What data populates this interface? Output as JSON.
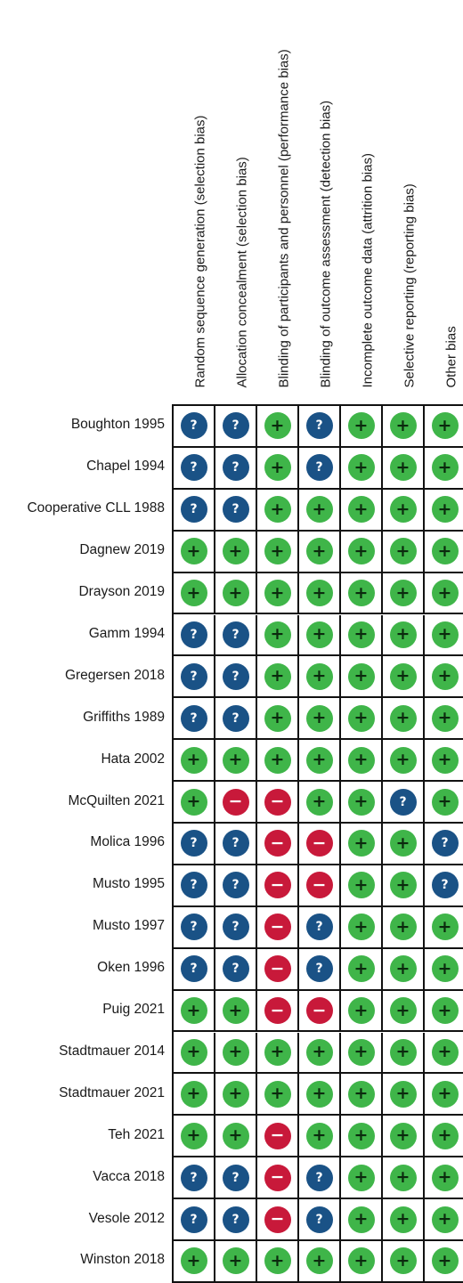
{
  "columns": [
    "Random sequence generation (selection bias)",
    "Allocation concealment (selection bias)",
    "Blinding of participants and personnel (performance bias)",
    "Blinding of outcome assessment (detection bias)",
    "Incomplete outcome data (attrition bias)",
    "Selective reporting (reporting bias)",
    "Other bias"
  ],
  "symbols": {
    "low": "+",
    "unclear": "?",
    "high": "−"
  },
  "colors": {
    "low": "#3fb549",
    "unclear": "#1a5286",
    "high": "#c8193a"
  },
  "studies": [
    {
      "name": "Boughton 1995",
      "ratings": [
        "unclear",
        "unclear",
        "low",
        "unclear",
        "low",
        "low",
        "low"
      ]
    },
    {
      "name": "Chapel 1994",
      "ratings": [
        "unclear",
        "unclear",
        "low",
        "unclear",
        "low",
        "low",
        "low"
      ]
    },
    {
      "name": "Cooperative CLL 1988",
      "ratings": [
        "unclear",
        "unclear",
        "low",
        "low",
        "low",
        "low",
        "low"
      ]
    },
    {
      "name": "Dagnew 2019",
      "ratings": [
        "low",
        "low",
        "low",
        "low",
        "low",
        "low",
        "low"
      ]
    },
    {
      "name": "Drayson 2019",
      "ratings": [
        "low",
        "low",
        "low",
        "low",
        "low",
        "low",
        "low"
      ]
    },
    {
      "name": "Gamm 1994",
      "ratings": [
        "unclear",
        "unclear",
        "low",
        "low",
        "low",
        "low",
        "low"
      ]
    },
    {
      "name": "Gregersen 2018",
      "ratings": [
        "unclear",
        "unclear",
        "low",
        "low",
        "low",
        "low",
        "low"
      ]
    },
    {
      "name": "Griffiths 1989",
      "ratings": [
        "unclear",
        "unclear",
        "low",
        "low",
        "low",
        "low",
        "low"
      ]
    },
    {
      "name": "Hata 2002",
      "ratings": [
        "low",
        "low",
        "low",
        "low",
        "low",
        "low",
        "low"
      ]
    },
    {
      "name": "McQuilten 2021",
      "ratings": [
        "low",
        "high",
        "high",
        "low",
        "low",
        "unclear",
        "low"
      ]
    },
    {
      "name": "Molica 1996",
      "ratings": [
        "unclear",
        "unclear",
        "high",
        "high",
        "low",
        "low",
        "unclear"
      ]
    },
    {
      "name": "Musto 1995",
      "ratings": [
        "unclear",
        "unclear",
        "high",
        "high",
        "low",
        "low",
        "unclear"
      ]
    },
    {
      "name": "Musto 1997",
      "ratings": [
        "unclear",
        "unclear",
        "high",
        "unclear",
        "low",
        "low",
        "low"
      ]
    },
    {
      "name": "Oken 1996",
      "ratings": [
        "unclear",
        "unclear",
        "high",
        "unclear",
        "low",
        "low",
        "low"
      ]
    },
    {
      "name": "Puig 2021",
      "ratings": [
        "low",
        "low",
        "high",
        "high",
        "low",
        "low",
        "low"
      ]
    },
    {
      "name": "Stadtmauer 2014",
      "ratings": [
        "low",
        "low",
        "low",
        "low",
        "low",
        "low",
        "low"
      ]
    },
    {
      "name": "Stadtmauer 2021",
      "ratings": [
        "low",
        "low",
        "low",
        "low",
        "low",
        "low",
        "low"
      ]
    },
    {
      "name": "Teh 2021",
      "ratings": [
        "low",
        "low",
        "high",
        "low",
        "low",
        "low",
        "low"
      ]
    },
    {
      "name": "Vacca 2018",
      "ratings": [
        "unclear",
        "unclear",
        "high",
        "unclear",
        "low",
        "low",
        "low"
      ]
    },
    {
      "name": "Vesole 2012",
      "ratings": [
        "unclear",
        "unclear",
        "high",
        "unclear",
        "low",
        "low",
        "low"
      ]
    },
    {
      "name": "Winston 2018",
      "ratings": [
        "low",
        "low",
        "low",
        "low",
        "low",
        "low",
        "low"
      ]
    }
  ]
}
